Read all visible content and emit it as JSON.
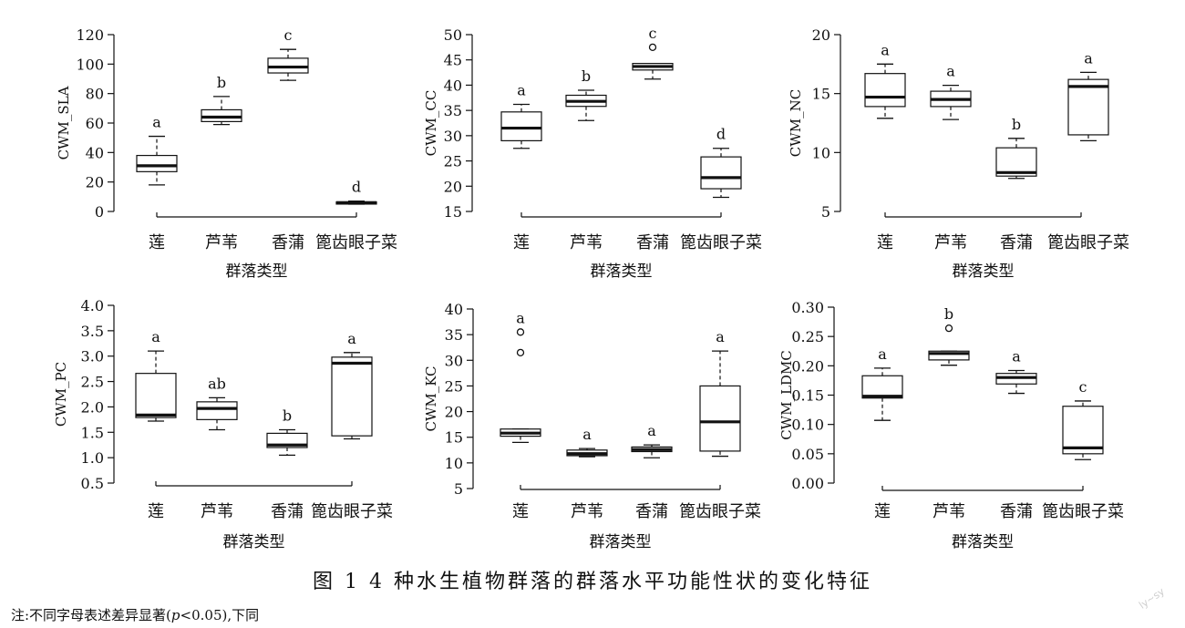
{
  "figure": {
    "caption": "图 1   4 种水生植物群落的群落水平功能性状的变化特征",
    "note_prefix": "注:不同字母表述差异显著(",
    "note_p": "p",
    "note_suffix": "<0.05),下同",
    "watermark": "ly~sy"
  },
  "chart_data": [
    {
      "type": "boxplot",
      "ylabel": "CWM_SLA",
      "xlabel": "群落类型",
      "categories": [
        "莲",
        "芦苇",
        "香蒲",
        "篦齿眼子菜"
      ],
      "ylim": [
        0,
        120
      ],
      "yticks": [
        0,
        20,
        40,
        60,
        80,
        100,
        120
      ],
      "ytick_labels": [
        "0",
        "20",
        "40",
        "60",
        "80",
        "100",
        "120"
      ],
      "boxes": [
        {
          "min": 18,
          "q1": 27,
          "median": 31,
          "q3": 38,
          "max": 51,
          "outliers": [],
          "letter": "a"
        },
        {
          "min": 59,
          "q1": 61,
          "median": 64,
          "q3": 69,
          "max": 78,
          "outliers": [],
          "letter": "b"
        },
        {
          "min": 89,
          "q1": 94,
          "median": 98,
          "q3": 104,
          "max": 110,
          "outliers": [],
          "letter": "c"
        },
        {
          "min": 5,
          "q1": 5,
          "median": 6,
          "q3": 6.5,
          "max": 7,
          "outliers": [],
          "letter": "d"
        }
      ]
    },
    {
      "type": "boxplot",
      "ylabel": "CWM_CC",
      "xlabel": "群落类型",
      "categories": [
        "莲",
        "芦苇",
        "香蒲",
        "篦齿眼子菜"
      ],
      "ylim": [
        15,
        50
      ],
      "yticks": [
        15,
        20,
        25,
        30,
        35,
        40,
        45,
        50
      ],
      "ytick_labels": [
        "15",
        "20",
        "25",
        "30",
        "35",
        "40",
        "45",
        "50"
      ],
      "boxes": [
        {
          "min": 27.5,
          "q1": 29,
          "median": 31.5,
          "q3": 34.7,
          "max": 36.2,
          "outliers": [],
          "letter": "a"
        },
        {
          "min": 33,
          "q1": 35.8,
          "median": 36.8,
          "q3": 38,
          "max": 39,
          "outliers": [],
          "letter": "b"
        },
        {
          "min": 41.2,
          "q1": 43,
          "median": 43.7,
          "q3": 44.3,
          "max": 44.3,
          "outliers": [
            47.5
          ],
          "letter": "c"
        },
        {
          "min": 17.8,
          "q1": 19.5,
          "median": 21.7,
          "q3": 25.8,
          "max": 27.5,
          "outliers": [],
          "letter": "d"
        }
      ]
    },
    {
      "type": "boxplot",
      "ylabel": "CWM_NC",
      "xlabel": "群落类型",
      "categories": [
        "莲",
        "芦苇",
        "香蒲",
        "篦齿眼子菜"
      ],
      "ylim": [
        5,
        20
      ],
      "yticks": [
        5,
        10,
        15,
        20
      ],
      "ytick_labels": [
        "5",
        "10",
        "15",
        "20"
      ],
      "boxes": [
        {
          "min": 12.9,
          "q1": 13.9,
          "median": 14.7,
          "q3": 16.7,
          "max": 17.5,
          "outliers": [],
          "letter": "a"
        },
        {
          "min": 12.8,
          "q1": 13.9,
          "median": 14.5,
          "q3": 15.2,
          "max": 15.7,
          "outliers": [],
          "letter": "a"
        },
        {
          "min": 7.8,
          "q1": 8,
          "median": 8.3,
          "q3": 10.4,
          "max": 11.2,
          "outliers": [],
          "letter": "b"
        },
        {
          "min": 11,
          "q1": 11.5,
          "median": 15.6,
          "q3": 16.2,
          "max": 16.8,
          "outliers": [],
          "letter": "a"
        }
      ]
    },
    {
      "type": "boxplot",
      "ylabel": "CWM_PC",
      "xlabel": "群落类型",
      "categories": [
        "莲",
        "芦苇",
        "香蒲",
        "篦齿眼子菜"
      ],
      "ylim": [
        0.5,
        4.0
      ],
      "yticks": [
        0.5,
        1.0,
        1.5,
        2.0,
        2.5,
        3.0,
        3.5,
        4.0
      ],
      "ytick_labels": [
        "0.5",
        "1.0",
        "1.5",
        "2.0",
        "2.5",
        "3.0",
        "3.5",
        "4.0"
      ],
      "boxes": [
        {
          "min": 1.72,
          "q1": 1.79,
          "median": 1.84,
          "q3": 2.66,
          "max": 3.1,
          "outliers": [],
          "letter": "a"
        },
        {
          "min": 1.55,
          "q1": 1.75,
          "median": 1.97,
          "q3": 2.1,
          "max": 2.18,
          "outliers": [],
          "letter": "ab"
        },
        {
          "min": 1.05,
          "q1": 1.2,
          "median": 1.25,
          "q3": 1.48,
          "max": 1.55,
          "outliers": [],
          "letter": "b"
        },
        {
          "min": 1.37,
          "q1": 1.43,
          "median": 2.86,
          "q3": 2.98,
          "max": 3.07,
          "outliers": [],
          "letter": "a"
        }
      ]
    },
    {
      "type": "boxplot",
      "ylabel": "CWM_KC",
      "xlabel": "群落类型",
      "categories": [
        "莲",
        "芦苇",
        "香蒲",
        "篦齿眼子菜"
      ],
      "ylim": [
        5,
        40
      ],
      "yticks": [
        5,
        10,
        15,
        20,
        25,
        30,
        35,
        40
      ],
      "ytick_labels": [
        "5",
        "10",
        "15",
        "20",
        "25",
        "30",
        "35",
        "40"
      ],
      "boxes": [
        {
          "min": 14,
          "q1": 15.2,
          "median": 15.8,
          "q3": 16.6,
          "max": 16.6,
          "outliers": [
            31.5,
            35.5
          ],
          "letter": "a"
        },
        {
          "min": 11.2,
          "q1": 11.4,
          "median": 11.8,
          "q3": 12.5,
          "max": 12.8,
          "outliers": [],
          "letter": "a"
        },
        {
          "min": 11,
          "q1": 12.2,
          "median": 12.6,
          "q3": 13.1,
          "max": 13.5,
          "outliers": [],
          "letter": "a"
        },
        {
          "min": 11.3,
          "q1": 12.3,
          "median": 18,
          "q3": 25,
          "max": 31.8,
          "outliers": [],
          "letter": "a"
        }
      ]
    },
    {
      "type": "boxplot",
      "ylabel": "CWM_LDMC",
      "xlabel": "群落类型",
      "categories": [
        "莲",
        "芦苇",
        "香蒲",
        "篦齿眼子菜"
      ],
      "ylim": [
        0.0,
        0.3
      ],
      "yticks": [
        0.0,
        0.05,
        0.1,
        0.15,
        0.2,
        0.25,
        0.3
      ],
      "ytick_labels": [
        "0.00",
        "0.05",
        "0.10",
        "0.15",
        "0.20",
        "0.25",
        "0.30"
      ],
      "boxes": [
        {
          "min": 0.107,
          "q1": 0.145,
          "median": 0.148,
          "q3": 0.183,
          "max": 0.196,
          "outliers": [],
          "letter": "a"
        },
        {
          "min": 0.201,
          "q1": 0.21,
          "median": 0.221,
          "q3": 0.225,
          "max": 0.225,
          "outliers": [
            0.264
          ],
          "letter": "b"
        },
        {
          "min": 0.153,
          "q1": 0.169,
          "median": 0.18,
          "q3": 0.187,
          "max": 0.192,
          "outliers": [],
          "letter": "a"
        },
        {
          "min": 0.04,
          "q1": 0.05,
          "median": 0.06,
          "q3": 0.131,
          "max": 0.14,
          "outliers": [],
          "letter": "c"
        }
      ]
    }
  ]
}
